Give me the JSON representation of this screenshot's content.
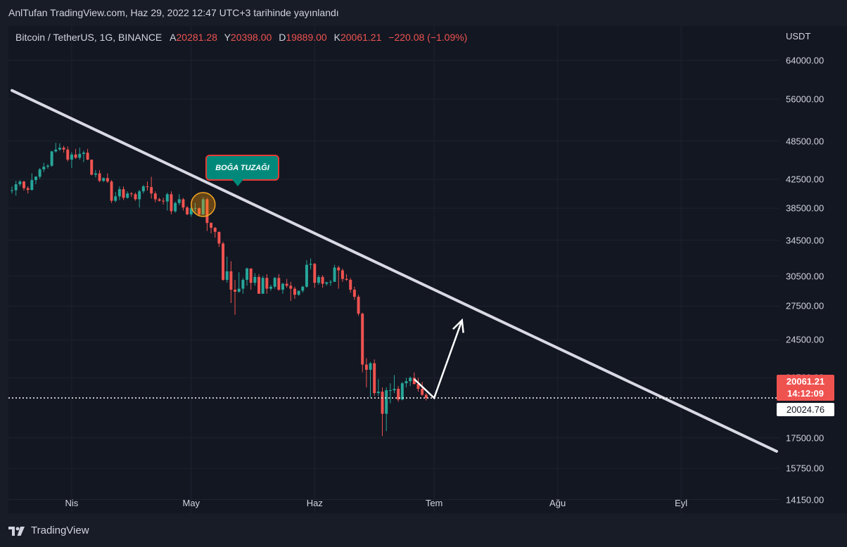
{
  "header": {
    "text": "AnlTufan TradingView.com, Haz 29, 2022 12:47 UTC+3 tarihinde yayınlandı"
  },
  "legend": {
    "symbol": "Bitcoin / TetherUS, 1G, BINANCE",
    "open_label": "A",
    "open": "20281.28",
    "high_label": "Y",
    "high": "20398.00",
    "low_label": "D",
    "low": "19889.00",
    "close_label": "K",
    "close": "20061.21",
    "change": "−220.08 (−1.09%)"
  },
  "price_axis": {
    "unit": "USDT",
    "ticks": [
      "64000.00",
      "56000.00",
      "48500.00",
      "42500.00",
      "38500.00",
      "34500.00",
      "30500.00",
      "27500.00",
      "24500.00",
      "21500.00",
      "17500.00",
      "15750.00",
      "14150.00"
    ]
  },
  "time_axis": {
    "ticks": [
      "Nis",
      "May",
      "Haz",
      "Tem",
      "Ağu",
      "Eyl"
    ]
  },
  "price_tag": {
    "price": "20061.21",
    "countdown": "14:12:09",
    "second_price": "20024.76"
  },
  "annotation": {
    "callout": "BOĞA TUZAĞI"
  },
  "footer": {
    "brand": "TradingView"
  },
  "colors": {
    "up": "#26a69a",
    "down": "#ef5350",
    "trendline": "#d9d9e3",
    "background": "#131722"
  },
  "chart_data": {
    "type": "candlestick",
    "title": "Bitcoin / TetherUS, 1G, BINANCE",
    "scale": "log",
    "ylim": [
      13500,
      72000
    ],
    "x_range": [
      "2022-03-17",
      "2022-09-25"
    ],
    "candles": [
      {
        "date": "2022-03-17",
        "o": 40900,
        "h": 41500,
        "l": 40500,
        "c": 40950
      },
      {
        "date": "2022-03-18",
        "o": 40950,
        "h": 42300,
        "l": 40200,
        "c": 41800
      },
      {
        "date": "2022-03-19",
        "o": 41800,
        "h": 42400,
        "l": 41500,
        "c": 42200
      },
      {
        "date": "2022-03-20",
        "o": 42200,
        "h": 42300,
        "l": 40900,
        "c": 41250
      },
      {
        "date": "2022-03-21",
        "o": 41250,
        "h": 41500,
        "l": 40500,
        "c": 41000
      },
      {
        "date": "2022-03-22",
        "o": 41000,
        "h": 43400,
        "l": 40900,
        "c": 42400
      },
      {
        "date": "2022-03-23",
        "o": 42400,
        "h": 43000,
        "l": 41800,
        "c": 42900
      },
      {
        "date": "2022-03-24",
        "o": 42900,
        "h": 44200,
        "l": 42600,
        "c": 44000
      },
      {
        "date": "2022-03-25",
        "o": 44000,
        "h": 45000,
        "l": 43600,
        "c": 44400
      },
      {
        "date": "2022-03-26",
        "o": 44400,
        "h": 44800,
        "l": 44100,
        "c": 44550
      },
      {
        "date": "2022-03-27",
        "o": 44550,
        "h": 46900,
        "l": 44400,
        "c": 46800
      },
      {
        "date": "2022-03-28",
        "o": 46800,
        "h": 48200,
        "l": 46600,
        "c": 47100
      },
      {
        "date": "2022-03-29",
        "o": 47100,
        "h": 48100,
        "l": 46900,
        "c": 47400
      },
      {
        "date": "2022-03-30",
        "o": 47400,
        "h": 47700,
        "l": 46600,
        "c": 47100
      },
      {
        "date": "2022-03-31",
        "o": 47100,
        "h": 47600,
        "l": 45200,
        "c": 45500
      },
      {
        "date": "2022-04-01",
        "o": 45500,
        "h": 46700,
        "l": 44200,
        "c": 46300
      },
      {
        "date": "2022-04-02",
        "o": 46300,
        "h": 47200,
        "l": 45600,
        "c": 45800
      },
      {
        "date": "2022-04-03",
        "o": 45800,
        "h": 47400,
        "l": 45500,
        "c": 46400
      },
      {
        "date": "2022-04-04",
        "o": 46400,
        "h": 46900,
        "l": 45100,
        "c": 46600
      },
      {
        "date": "2022-04-05",
        "o": 46600,
        "h": 47200,
        "l": 45400,
        "c": 45500
      },
      {
        "date": "2022-04-06",
        "o": 45500,
        "h": 45500,
        "l": 43100,
        "c": 43200
      },
      {
        "date": "2022-04-07",
        "o": 43200,
        "h": 43900,
        "l": 42800,
        "c": 43400
      },
      {
        "date": "2022-04-08",
        "o": 43400,
        "h": 43900,
        "l": 42100,
        "c": 42300
      },
      {
        "date": "2022-04-09",
        "o": 42300,
        "h": 42800,
        "l": 42100,
        "c": 42700
      },
      {
        "date": "2022-04-10",
        "o": 42700,
        "h": 43400,
        "l": 42000,
        "c": 42200
      },
      {
        "date": "2022-04-11",
        "o": 42200,
        "h": 42400,
        "l": 39200,
        "c": 39500
      },
      {
        "date": "2022-04-12",
        "o": 39500,
        "h": 40700,
        "l": 39300,
        "c": 40100
      },
      {
        "date": "2022-04-13",
        "o": 40100,
        "h": 41500,
        "l": 39600,
        "c": 41100
      },
      {
        "date": "2022-04-14",
        "o": 41100,
        "h": 41500,
        "l": 39600,
        "c": 39900
      },
      {
        "date": "2022-04-15",
        "o": 39900,
        "h": 40800,
        "l": 39800,
        "c": 40500
      },
      {
        "date": "2022-04-16",
        "o": 40500,
        "h": 40700,
        "l": 40000,
        "c": 40400
      },
      {
        "date": "2022-04-17",
        "o": 40400,
        "h": 40600,
        "l": 39500,
        "c": 39700
      },
      {
        "date": "2022-04-18",
        "o": 39700,
        "h": 41000,
        "l": 38600,
        "c": 40800
      },
      {
        "date": "2022-04-19",
        "o": 40800,
        "h": 41700,
        "l": 40500,
        "c": 41500
      },
      {
        "date": "2022-04-20",
        "o": 41500,
        "h": 42200,
        "l": 40900,
        "c": 41400
      },
      {
        "date": "2022-04-21",
        "o": 41400,
        "h": 42900,
        "l": 39800,
        "c": 40500
      },
      {
        "date": "2022-04-22",
        "o": 40500,
        "h": 40800,
        "l": 39300,
        "c": 39700
      },
      {
        "date": "2022-04-23",
        "o": 39700,
        "h": 39900,
        "l": 39400,
        "c": 39500
      },
      {
        "date": "2022-04-24",
        "o": 39500,
        "h": 39900,
        "l": 39000,
        "c": 39400
      },
      {
        "date": "2022-04-25",
        "o": 39400,
        "h": 40600,
        "l": 38200,
        "c": 40400
      },
      {
        "date": "2022-04-26",
        "o": 40400,
        "h": 40800,
        "l": 37700,
        "c": 38100
      },
      {
        "date": "2022-04-27",
        "o": 38100,
        "h": 39400,
        "l": 37900,
        "c": 39200
      },
      {
        "date": "2022-04-28",
        "o": 39200,
        "h": 40400,
        "l": 38900,
        "c": 39700
      },
      {
        "date": "2022-04-29",
        "o": 39700,
        "h": 39900,
        "l": 38200,
        "c": 38600
      },
      {
        "date": "2022-04-30",
        "o": 38600,
        "h": 38800,
        "l": 37600,
        "c": 37700
      },
      {
        "date": "2022-05-01",
        "o": 37700,
        "h": 38700,
        "l": 37400,
        "c": 38500
      },
      {
        "date": "2022-05-02",
        "o": 38500,
        "h": 39200,
        "l": 38000,
        "c": 38500
      },
      {
        "date": "2022-05-03",
        "o": 38500,
        "h": 38600,
        "l": 37500,
        "c": 37700
      },
      {
        "date": "2022-05-04",
        "o": 37700,
        "h": 40000,
        "l": 37600,
        "c": 39700
      },
      {
        "date": "2022-05-05",
        "o": 39700,
        "h": 39900,
        "l": 35600,
        "c": 36600
      },
      {
        "date": "2022-05-06",
        "o": 36600,
        "h": 36700,
        "l": 35300,
        "c": 36000
      },
      {
        "date": "2022-05-07",
        "o": 36000,
        "h": 36100,
        "l": 34800,
        "c": 35500
      },
      {
        "date": "2022-05-08",
        "o": 35500,
        "h": 35500,
        "l": 33700,
        "c": 34100
      },
      {
        "date": "2022-05-09",
        "o": 34100,
        "h": 34300,
        "l": 30000,
        "c": 30100
      },
      {
        "date": "2022-05-10",
        "o": 30100,
        "h": 32600,
        "l": 29800,
        "c": 31000
      },
      {
        "date": "2022-05-11",
        "o": 31000,
        "h": 32100,
        "l": 27800,
        "c": 29100
      },
      {
        "date": "2022-05-12",
        "o": 29100,
        "h": 30100,
        "l": 26700,
        "c": 28900
      },
      {
        "date": "2022-05-13",
        "o": 28900,
        "h": 30900,
        "l": 28800,
        "c": 29200
      },
      {
        "date": "2022-05-14",
        "o": 29200,
        "h": 30300,
        "l": 28700,
        "c": 30100
      },
      {
        "date": "2022-05-15",
        "o": 30100,
        "h": 31400,
        "l": 29500,
        "c": 31300
      },
      {
        "date": "2022-05-16",
        "o": 31300,
        "h": 31300,
        "l": 29100,
        "c": 29800
      },
      {
        "date": "2022-05-17",
        "o": 29800,
        "h": 30800,
        "l": 29500,
        "c": 30400
      },
      {
        "date": "2022-05-18",
        "o": 30400,
        "h": 30700,
        "l": 28700,
        "c": 28700
      },
      {
        "date": "2022-05-19",
        "o": 28700,
        "h": 30500,
        "l": 28700,
        "c": 30300
      },
      {
        "date": "2022-05-20",
        "o": 30300,
        "h": 30700,
        "l": 28700,
        "c": 29200
      },
      {
        "date": "2022-05-21",
        "o": 29200,
        "h": 29600,
        "l": 29000,
        "c": 29400
      },
      {
        "date": "2022-05-22",
        "o": 29400,
        "h": 30400,
        "l": 29200,
        "c": 30300
      },
      {
        "date": "2022-05-23",
        "o": 30300,
        "h": 30700,
        "l": 29000,
        "c": 29100
      },
      {
        "date": "2022-05-24",
        "o": 29100,
        "h": 29800,
        "l": 28700,
        "c": 29700
      },
      {
        "date": "2022-05-25",
        "o": 29700,
        "h": 30200,
        "l": 29300,
        "c": 29500
      },
      {
        "date": "2022-05-26",
        "o": 29500,
        "h": 29900,
        "l": 28000,
        "c": 29200
      },
      {
        "date": "2022-05-27",
        "o": 29200,
        "h": 29400,
        "l": 28200,
        "c": 28600
      },
      {
        "date": "2022-05-28",
        "o": 28600,
        "h": 29000,
        "l": 28500,
        "c": 29000
      },
      {
        "date": "2022-05-29",
        "o": 29000,
        "h": 29500,
        "l": 28800,
        "c": 29400
      },
      {
        "date": "2022-05-30",
        "o": 29400,
        "h": 32200,
        "l": 29300,
        "c": 31700
      },
      {
        "date": "2022-05-31",
        "o": 31700,
        "h": 32400,
        "l": 31200,
        "c": 31800
      },
      {
        "date": "2022-06-01",
        "o": 31800,
        "h": 31900,
        "l": 29300,
        "c": 29800
      },
      {
        "date": "2022-06-02",
        "o": 29800,
        "h": 30600,
        "l": 29600,
        "c": 30400
      },
      {
        "date": "2022-06-03",
        "o": 30400,
        "h": 30600,
        "l": 29300,
        "c": 29700
      },
      {
        "date": "2022-06-04",
        "o": 29700,
        "h": 29900,
        "l": 29500,
        "c": 29850
      },
      {
        "date": "2022-06-05",
        "o": 29850,
        "h": 30100,
        "l": 29500,
        "c": 29900
      },
      {
        "date": "2022-06-06",
        "o": 29900,
        "h": 31700,
        "l": 29900,
        "c": 31400
      },
      {
        "date": "2022-06-07",
        "o": 31400,
        "h": 31600,
        "l": 29200,
        "c": 31100
      },
      {
        "date": "2022-06-08",
        "o": 31100,
        "h": 31300,
        "l": 29900,
        "c": 30200
      },
      {
        "date": "2022-06-09",
        "o": 30200,
        "h": 30700,
        "l": 30000,
        "c": 30100
      },
      {
        "date": "2022-06-10",
        "o": 30100,
        "h": 30300,
        "l": 28800,
        "c": 29100
      },
      {
        "date": "2022-06-11",
        "o": 29100,
        "h": 29400,
        "l": 28100,
        "c": 28400
      },
      {
        "date": "2022-06-12",
        "o": 28400,
        "h": 28600,
        "l": 26600,
        "c": 26800
      },
      {
        "date": "2022-06-13",
        "o": 26800,
        "h": 26900,
        "l": 21900,
        "c": 22500
      },
      {
        "date": "2022-06-14",
        "o": 22500,
        "h": 23000,
        "l": 20800,
        "c": 22100
      },
      {
        "date": "2022-06-15",
        "o": 22100,
        "h": 22700,
        "l": 20100,
        "c": 22600
      },
      {
        "date": "2022-06-16",
        "o": 22600,
        "h": 22900,
        "l": 20200,
        "c": 20400
      },
      {
        "date": "2022-06-17",
        "o": 20400,
        "h": 21400,
        "l": 20200,
        "c": 20500
      },
      {
        "date": "2022-06-18",
        "o": 20500,
        "h": 20800,
        "l": 17600,
        "c": 19000
      },
      {
        "date": "2022-06-19",
        "o": 19000,
        "h": 20800,
        "l": 17900,
        "c": 20600
      },
      {
        "date": "2022-06-20",
        "o": 20600,
        "h": 21100,
        "l": 19700,
        "c": 20600
      },
      {
        "date": "2022-06-21",
        "o": 20600,
        "h": 21700,
        "l": 20400,
        "c": 20700
      },
      {
        "date": "2022-06-22",
        "o": 20700,
        "h": 20900,
        "l": 19800,
        "c": 19950
      },
      {
        "date": "2022-06-23",
        "o": 19950,
        "h": 21200,
        "l": 19900,
        "c": 21100
      },
      {
        "date": "2022-06-24",
        "o": 21100,
        "h": 21500,
        "l": 20800,
        "c": 21250
      },
      {
        "date": "2022-06-25",
        "o": 21250,
        "h": 21600,
        "l": 20900,
        "c": 21500
      },
      {
        "date": "2022-06-26",
        "o": 21500,
        "h": 21900,
        "l": 21000,
        "c": 21050
      },
      {
        "date": "2022-06-27",
        "o": 21050,
        "h": 21500,
        "l": 20500,
        "c": 20700
      },
      {
        "date": "2022-06-28",
        "o": 20700,
        "h": 21200,
        "l": 20200,
        "c": 20280
      },
      {
        "date": "2022-06-29",
        "o": 20281.28,
        "h": 20398,
        "l": 19889,
        "c": 20061.21
      }
    ],
    "trendline": {
      "from": {
        "date": "2022-03-17",
        "price": 57700
      },
      "to": {
        "date": "2022-09-25",
        "price": 16700
      }
    },
    "projection": [
      {
        "date": "2022-06-26",
        "price": 21400
      },
      {
        "date": "2022-07-01",
        "price": 20061.21
      },
      {
        "date": "2022-07-08",
        "price": 26200
      }
    ],
    "last_price_line": 20061.21,
    "trap_marker": {
      "date": "2022-05-04",
      "price": 39000
    }
  }
}
